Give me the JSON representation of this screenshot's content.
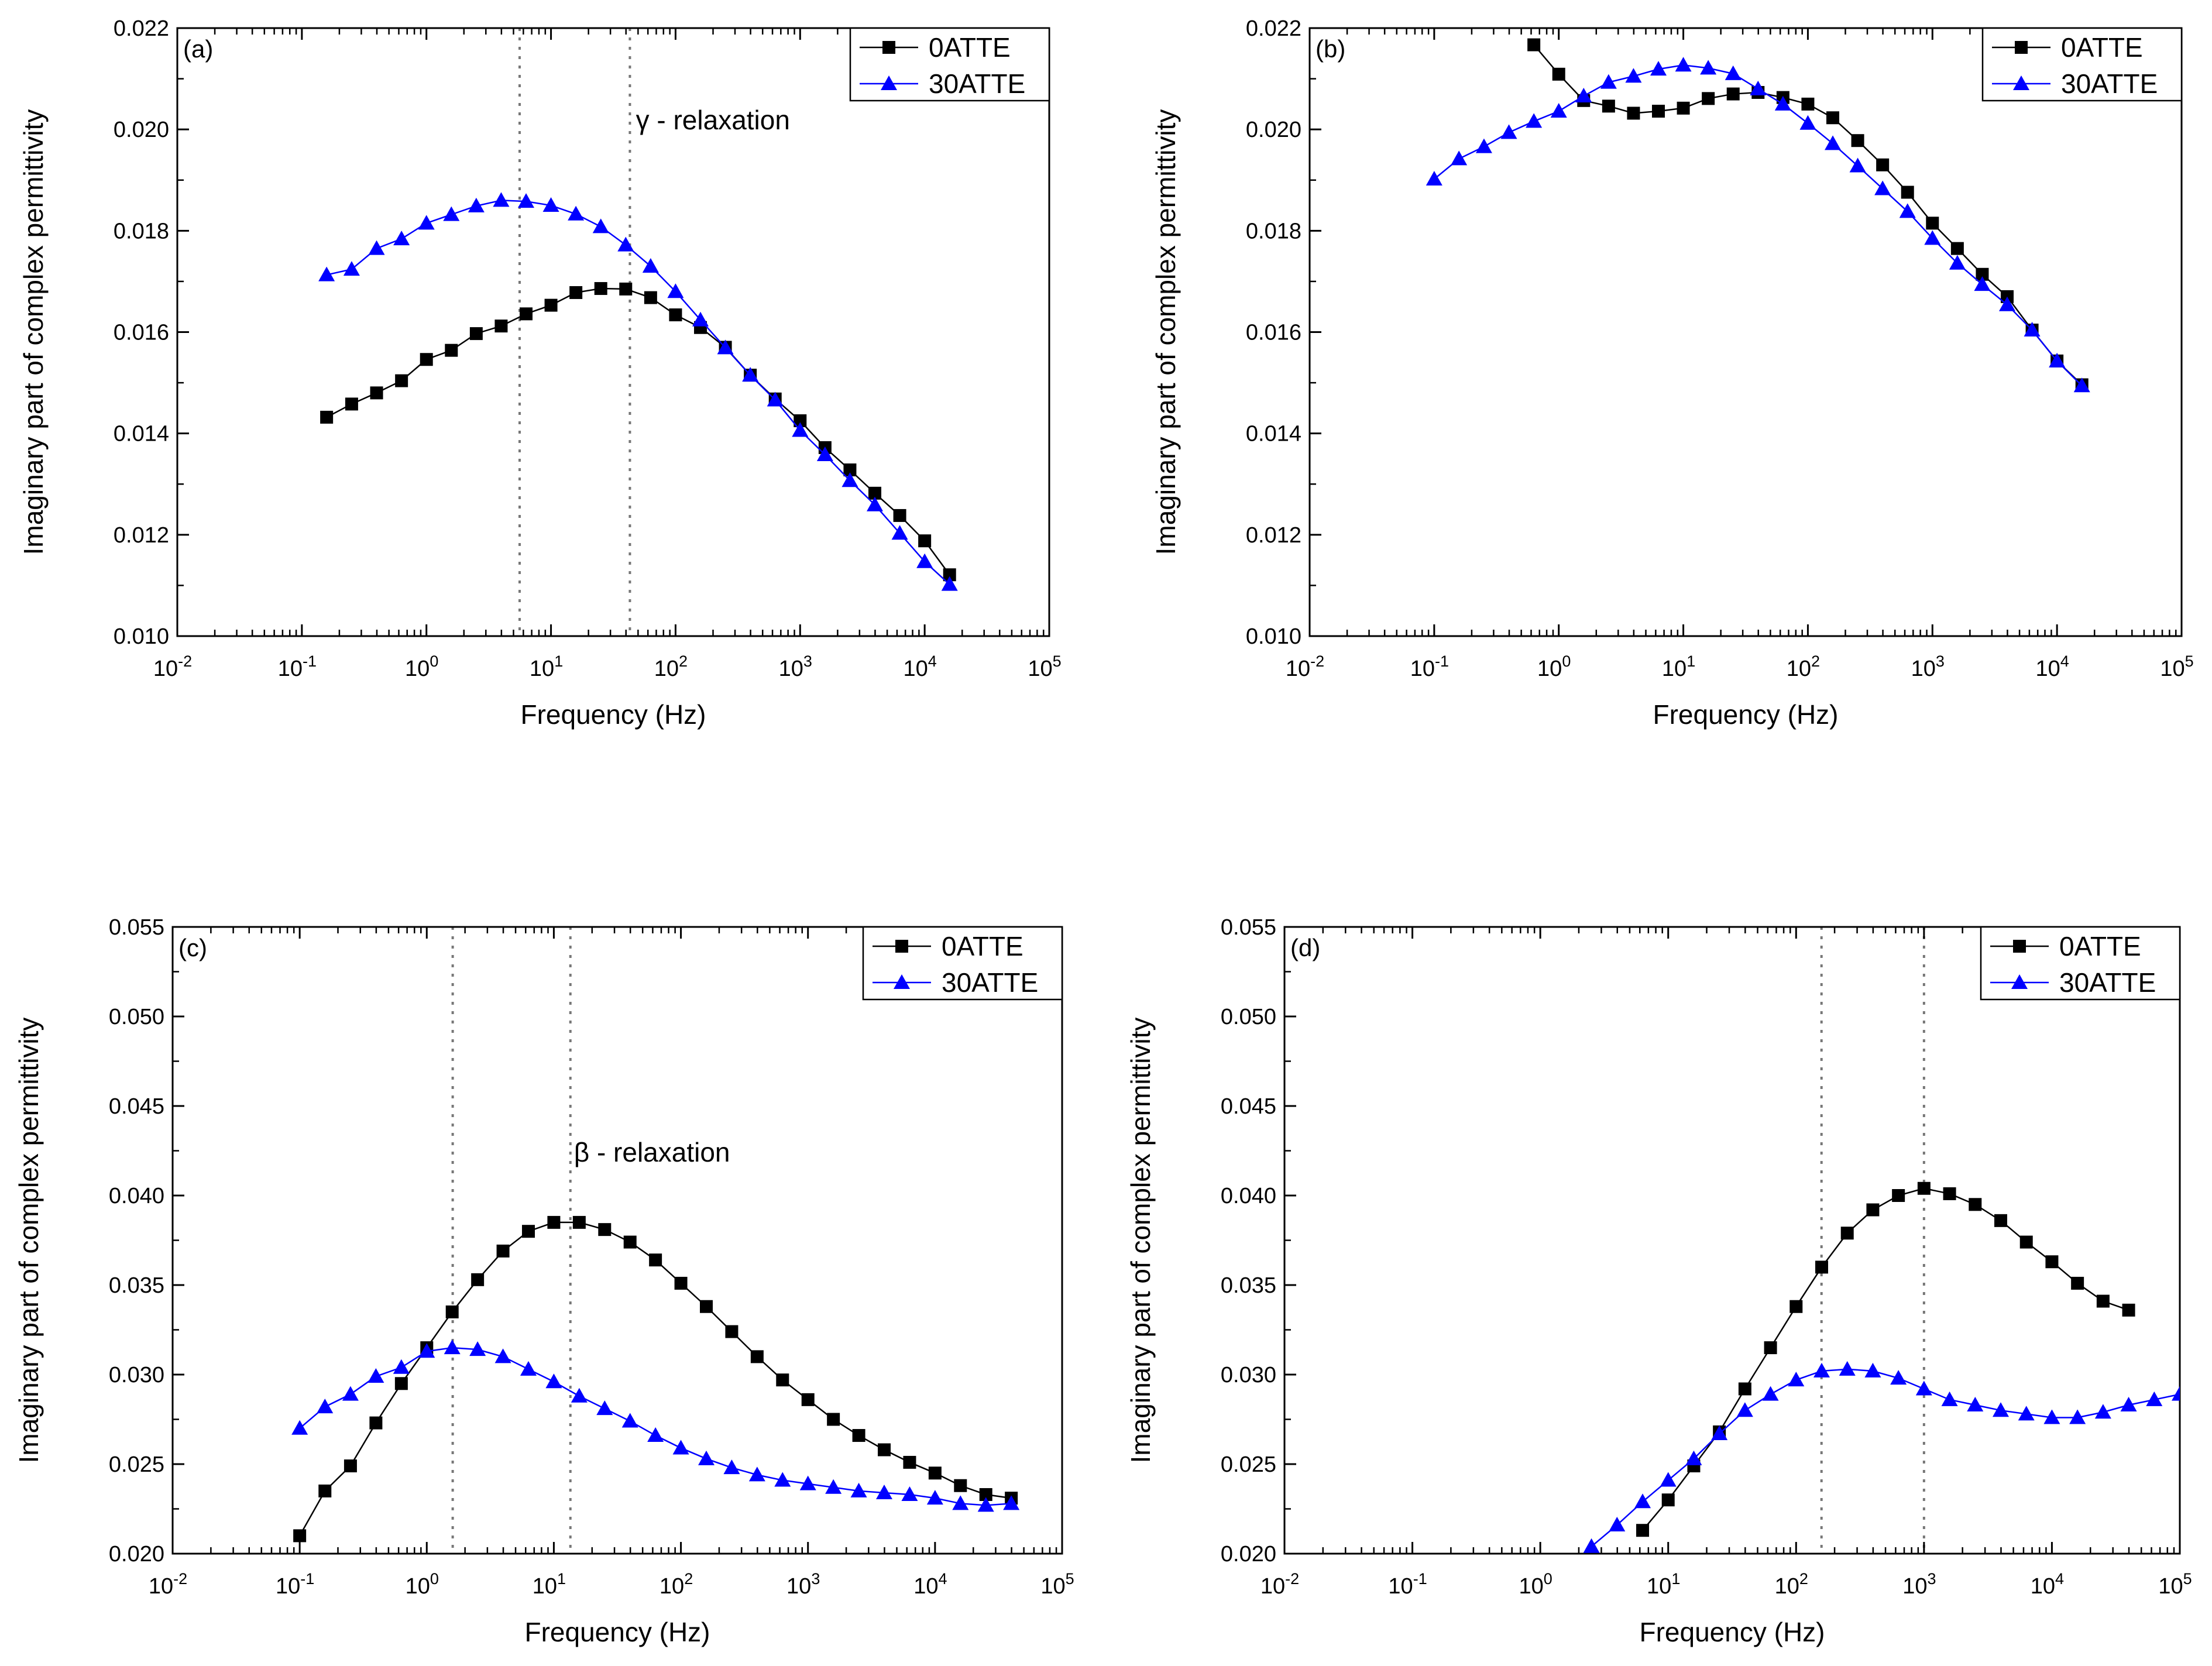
{
  "colors": {
    "series_0ATTE": "#000000",
    "series_30ATTE": "#0000ff",
    "guide": "#777777"
  },
  "chart_data": [
    {
      "panel": "(a)",
      "type": "line",
      "xlabel": "Frequency (Hz)",
      "ylabel": "Imaginary part of complex permittivity",
      "x_scale": "log",
      "xlim": [
        0.01,
        100000
      ],
      "ylim": [
        0.01,
        0.022
      ],
      "x_ticks": [
        {
          "value": 0.01,
          "base": "10",
          "exp": "-2"
        },
        {
          "value": 0.1,
          "base": "10",
          "exp": "-1"
        },
        {
          "value": 1,
          "base": "10",
          "exp": "0"
        },
        {
          "value": 10,
          "base": "10",
          "exp": "1"
        },
        {
          "value": 100,
          "base": "10",
          "exp": "2"
        },
        {
          "value": 1000,
          "base": "10",
          "exp": "3"
        },
        {
          "value": 10000,
          "base": "10",
          "exp": "4"
        },
        {
          "value": 100000,
          "base": "10",
          "exp": "5"
        }
      ],
      "y_ticks": [
        {
          "value": 0.01,
          "label": "0.010"
        },
        {
          "value": 0.012,
          "label": "0.012"
        },
        {
          "value": 0.014,
          "label": "0.014"
        },
        {
          "value": 0.016,
          "label": "0.016"
        },
        {
          "value": 0.018,
          "label": "0.018"
        },
        {
          "value": 0.02,
          "label": "0.020"
        },
        {
          "value": 0.022,
          "label": "0.022"
        }
      ],
      "legend": {
        "position": "top-right"
      },
      "guide_lines_x": [
        5.6,
        43
      ],
      "annotations": [
        {
          "text": "γ - relaxation",
          "x": 45,
          "y": 0.02
        }
      ],
      "series": [
        {
          "name": "0ATTE",
          "marker": "square",
          "color": "#000000",
          "x": [
            0.158,
            0.251,
            0.398,
            0.631,
            1.0,
            1.585,
            2.512,
            3.981,
            6.31,
            10,
            15.85,
            25.12,
            39.81,
            63.1,
            100,
            158.5,
            251.2,
            398.1,
            631,
            1000,
            1585,
            2512,
            3981,
            6310,
            10000,
            15849
          ],
          "y": [
            0.01432,
            0.01458,
            0.0148,
            0.01504,
            0.01546,
            0.01564,
            0.01597,
            0.01612,
            0.01636,
            0.01653,
            0.01678,
            0.01686,
            0.01685,
            0.01668,
            0.01634,
            0.01609,
            0.0157,
            0.01515,
            0.01468,
            0.01425,
            0.01372,
            0.01328,
            0.01282,
            0.01238,
            0.01188,
            0.01121
          ]
        },
        {
          "name": "30ATTE",
          "marker": "triangle",
          "color": "#0000ff",
          "x": [
            0.158,
            0.251,
            0.398,
            0.631,
            1.0,
            1.585,
            2.512,
            3.981,
            6.31,
            10,
            15.85,
            25.12,
            39.81,
            63.1,
            100,
            158.5,
            251.2,
            398.1,
            631,
            1000,
            1585,
            2512,
            3981,
            6310,
            10000,
            15849
          ],
          "y": [
            0.01713,
            0.01724,
            0.01765,
            0.01784,
            0.01815,
            0.01832,
            0.01849,
            0.0186,
            0.01858,
            0.0185,
            0.01833,
            0.01808,
            0.01772,
            0.0173,
            0.0168,
            0.01624,
            0.01569,
            0.01515,
            0.01466,
            0.01406,
            0.01358,
            0.01307,
            0.01259,
            0.01203,
            0.01147,
            0.01102
          ]
        }
      ]
    },
    {
      "panel": "(b)",
      "type": "line",
      "xlabel": "Frequency (Hz)",
      "ylabel": "Imaginary part of complex permittivity",
      "x_scale": "log",
      "xlim": [
        0.01,
        100000
      ],
      "ylim": [
        0.01,
        0.022
      ],
      "x_ticks": [
        {
          "value": 0.01,
          "base": "10",
          "exp": "-2"
        },
        {
          "value": 0.1,
          "base": "10",
          "exp": "-1"
        },
        {
          "value": 1,
          "base": "10",
          "exp": "0"
        },
        {
          "value": 10,
          "base": "10",
          "exp": "1"
        },
        {
          "value": 100,
          "base": "10",
          "exp": "2"
        },
        {
          "value": 1000,
          "base": "10",
          "exp": "3"
        },
        {
          "value": 10000,
          "base": "10",
          "exp": "4"
        },
        {
          "value": 100000,
          "base": "10",
          "exp": "5"
        }
      ],
      "y_ticks": [
        {
          "value": 0.01,
          "label": "0.010"
        },
        {
          "value": 0.012,
          "label": "0.012"
        },
        {
          "value": 0.014,
          "label": "0.014"
        },
        {
          "value": 0.016,
          "label": "0.016"
        },
        {
          "value": 0.018,
          "label": "0.018"
        },
        {
          "value": 0.02,
          "label": "0.020"
        },
        {
          "value": 0.022,
          "label": "0.022"
        }
      ],
      "legend": {
        "position": "top-right"
      },
      "guide_lines_x": [],
      "annotations": [],
      "series": [
        {
          "name": "0ATTE",
          "marker": "square",
          "color": "#000000",
          "x": [
            0.631,
            1.0,
            1.585,
            2.512,
            3.981,
            6.31,
            10,
            15.85,
            25.12,
            39.81,
            63.1,
            100,
            158.5,
            251.2,
            398.1,
            631,
            1000,
            1585,
            2512,
            3981,
            6310,
            10000,
            15849
          ],
          "y": [
            0.02167,
            0.02109,
            0.02057,
            0.02046,
            0.02032,
            0.02036,
            0.02042,
            0.02061,
            0.0207,
            0.02073,
            0.02063,
            0.0205,
            0.02023,
            0.01978,
            0.0193,
            0.01876,
            0.01815,
            0.01765,
            0.01714,
            0.0167,
            0.01604,
            0.01543,
            0.01496
          ]
        },
        {
          "name": "30ATTE",
          "marker": "triangle",
          "color": "#0000ff",
          "x": [
            0.1,
            0.158,
            0.251,
            0.398,
            0.631,
            1.0,
            1.585,
            2.512,
            3.981,
            6.31,
            10,
            15.85,
            25.12,
            39.81,
            63.1,
            100,
            158.5,
            251.2,
            398.1,
            631,
            1000,
            1585,
            2512,
            3981,
            6310,
            10000,
            15849
          ],
          "y": [
            0.01902,
            0.01942,
            0.01966,
            0.01994,
            0.02016,
            0.02036,
            0.02066,
            0.02093,
            0.02105,
            0.02119,
            0.02127,
            0.02121,
            0.0211,
            0.0208,
            0.0205,
            0.02012,
            0.01972,
            0.01928,
            0.01883,
            0.01838,
            0.01785,
            0.01736,
            0.01694,
            0.01654,
            0.01604,
            0.01543,
            0.01494
          ]
        }
      ]
    },
    {
      "panel": "(c)",
      "type": "line",
      "xlabel": "Frequency (Hz)",
      "ylabel": "Imaginary part of complex permittivity",
      "x_scale": "log",
      "xlim": [
        0.01,
        100000
      ],
      "ylim": [
        0.02,
        0.055
      ],
      "x_ticks": [
        {
          "value": 0.01,
          "base": "10",
          "exp": "-2"
        },
        {
          "value": 0.1,
          "base": "10",
          "exp": "-1"
        },
        {
          "value": 1,
          "base": "10",
          "exp": "0"
        },
        {
          "value": 10,
          "base": "10",
          "exp": "1"
        },
        {
          "value": 100,
          "base": "10",
          "exp": "2"
        },
        {
          "value": 1000,
          "base": "10",
          "exp": "3"
        },
        {
          "value": 10000,
          "base": "10",
          "exp": "4"
        },
        {
          "value": 100000,
          "base": "10",
          "exp": "5"
        }
      ],
      "y_ticks": [
        {
          "value": 0.02,
          "label": "0.020"
        },
        {
          "value": 0.025,
          "label": "0.025"
        },
        {
          "value": 0.03,
          "label": "0.030"
        },
        {
          "value": 0.035,
          "label": "0.035"
        },
        {
          "value": 0.04,
          "label": "0.040"
        },
        {
          "value": 0.045,
          "label": "0.045"
        },
        {
          "value": 0.05,
          "label": "0.050"
        },
        {
          "value": 0.055,
          "label": "0.055"
        }
      ],
      "legend": {
        "position": "top-right"
      },
      "guide_lines_x": [
        1.6,
        13.5
      ],
      "annotations": [
        {
          "text": "β - relaxation",
          "x": 13.5,
          "y": 0.0419
        }
      ],
      "series": [
        {
          "name": "0ATTE",
          "marker": "square",
          "color": "#000000",
          "x": [
            0.1,
            0.158,
            0.251,
            0.398,
            0.631,
            1.0,
            1.585,
            2.512,
            3.981,
            6.31,
            10,
            15.85,
            25.12,
            39.81,
            63.1,
            100,
            158.5,
            251.2,
            398.1,
            631,
            1000,
            1585,
            2512,
            3981,
            6310,
            10000,
            15849,
            25119,
            39811
          ],
          "y": [
            0.021,
            0.0235,
            0.0249,
            0.0273,
            0.0295,
            0.0315,
            0.0335,
            0.0353,
            0.0369,
            0.038,
            0.0385,
            0.0385,
            0.0381,
            0.0374,
            0.0364,
            0.0351,
            0.0338,
            0.0324,
            0.031,
            0.0297,
            0.0286,
            0.0275,
            0.0266,
            0.0258,
            0.0251,
            0.0245,
            0.0238,
            0.0233,
            0.0231
          ]
        },
        {
          "name": "30ATTE",
          "marker": "triangle",
          "color": "#0000ff",
          "x": [
            0.1,
            0.158,
            0.251,
            0.398,
            0.631,
            1.0,
            1.585,
            2.512,
            3.981,
            6.31,
            10,
            15.85,
            25.12,
            39.81,
            63.1,
            100,
            158.5,
            251.2,
            398.1,
            631,
            1000,
            1585,
            2512,
            3981,
            6310,
            10000,
            15849,
            25119,
            39811
          ],
          "y": [
            0.027,
            0.0282,
            0.0289,
            0.0299,
            0.0304,
            0.0313,
            0.0315,
            0.0314,
            0.031,
            0.0303,
            0.0296,
            0.0288,
            0.0281,
            0.0274,
            0.0266,
            0.0259,
            0.0253,
            0.0248,
            0.0244,
            0.0241,
            0.0239,
            0.0237,
            0.0235,
            0.0234,
            0.0233,
            0.0231,
            0.0228,
            0.0227,
            0.0228
          ]
        }
      ]
    },
    {
      "panel": "(d)",
      "type": "line",
      "xlabel": "Frequency (Hz)",
      "ylabel": "Imaginary part of complex permittivity",
      "x_scale": "log",
      "xlim": [
        0.01,
        100000
      ],
      "ylim": [
        0.02,
        0.055
      ],
      "x_ticks": [
        {
          "value": 0.01,
          "base": "10",
          "exp": "-2"
        },
        {
          "value": 0.1,
          "base": "10",
          "exp": "-1"
        },
        {
          "value": 1,
          "base": "10",
          "exp": "0"
        },
        {
          "value": 10,
          "base": "10",
          "exp": "1"
        },
        {
          "value": 100,
          "base": "10",
          "exp": "2"
        },
        {
          "value": 1000,
          "base": "10",
          "exp": "3"
        },
        {
          "value": 10000,
          "base": "10",
          "exp": "4"
        },
        {
          "value": 100000,
          "base": "10",
          "exp": "5"
        }
      ],
      "y_ticks": [
        {
          "value": 0.02,
          "label": "0.020"
        },
        {
          "value": 0.025,
          "label": "0.025"
        },
        {
          "value": 0.03,
          "label": "0.030"
        },
        {
          "value": 0.035,
          "label": "0.035"
        },
        {
          "value": 0.04,
          "label": "0.040"
        },
        {
          "value": 0.045,
          "label": "0.045"
        },
        {
          "value": 0.05,
          "label": "0.050"
        },
        {
          "value": 0.055,
          "label": "0.055"
        }
      ],
      "legend": {
        "position": "top-right"
      },
      "guide_lines_x": [
        158,
        1000
      ],
      "annotations": [],
      "series": [
        {
          "name": "0ATTE",
          "marker": "square",
          "color": "#000000",
          "x": [
            6.31,
            10,
            15.85,
            25.12,
            39.81,
            63.1,
            100,
            158.5,
            251.2,
            398.1,
            631,
            1000,
            1585,
            2512,
            3981,
            6310,
            10000,
            15849,
            25119,
            39811
          ],
          "y": [
            0.0213,
            0.023,
            0.0249,
            0.0268,
            0.0292,
            0.0315,
            0.0338,
            0.036,
            0.0379,
            0.0392,
            0.04,
            0.0404,
            0.0401,
            0.0395,
            0.0386,
            0.0374,
            0.0363,
            0.0351,
            0.0341,
            0.0336
          ]
        },
        {
          "name": "30ATTE",
          "marker": "triangle",
          "color": "#0000ff",
          "x": [
            2.512,
            3.981,
            6.31,
            10,
            15.85,
            25.12,
            39.81,
            63.1,
            100,
            158.5,
            251.2,
            398.1,
            631,
            1000,
            1585,
            2512,
            3981,
            6310,
            10000,
            15849,
            25119,
            39811,
            63096,
            100000
          ],
          "y": [
            0.0204,
            0.0216,
            0.0229,
            0.0241,
            0.0253,
            0.0267,
            0.028,
            0.0289,
            0.0297,
            0.0302,
            0.0303,
            0.0302,
            0.0298,
            0.0292,
            0.0286,
            0.0283,
            0.028,
            0.0278,
            0.0276,
            0.0276,
            0.0279,
            0.0283,
            0.0286,
            0.0289
          ]
        }
      ]
    }
  ]
}
